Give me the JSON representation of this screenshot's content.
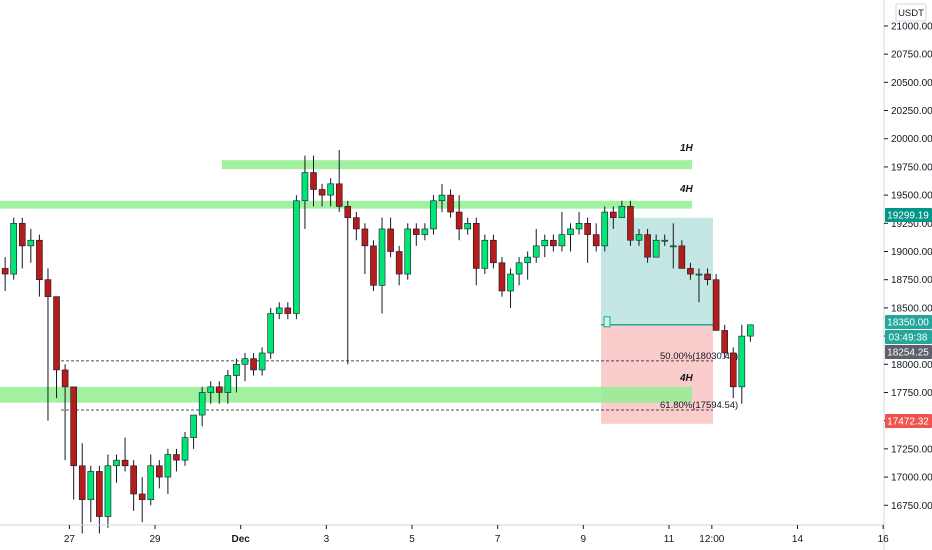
{
  "currency_unit": "USDT",
  "chart_data": {
    "type": "candlestick",
    "symbol_unit": "USDT",
    "y_ticks": [
      21000,
      20750,
      20500,
      20250,
      20000,
      19750,
      19500,
      19250,
      19000,
      18750,
      18500,
      18250,
      18000,
      17750,
      17500,
      17250,
      17000,
      16750
    ],
    "y_tick_labels": [
      "21000.00",
      "20750.00",
      "20500.00",
      "20250.00",
      "20000.00",
      "19750.00",
      "19500.00",
      "19250.00",
      "19000.00",
      "18750.00",
      "18500.00",
      "18250.00",
      "18000.00",
      "17750.00",
      "17500.00",
      "17250.00",
      "17000.00",
      "16750.00"
    ],
    "x_ticks": [
      {
        "label": "27",
        "t": 7.5
      },
      {
        "label": "29",
        "t": 17.5
      },
      {
        "label": "Dec",
        "t": 27.5,
        "bold": true
      },
      {
        "label": "3",
        "t": 37.5
      },
      {
        "label": "5",
        "t": 47.5
      },
      {
        "label": "7",
        "t": 57.5
      },
      {
        "label": "9",
        "t": 67.5
      },
      {
        "label": "11",
        "t": 77.5
      },
      {
        "label": "12:00",
        "t": 82.5
      },
      {
        "label": "14",
        "t": 92.5
      },
      {
        "label": "16",
        "t": 102.5
      }
    ],
    "x_range": [
      -0.6,
      102.6
    ],
    "y_range": [
      16575,
      21230
    ],
    "candles": [
      [
        18850,
        18950,
        18650,
        18800
      ],
      [
        18800,
        19300,
        18750,
        19250
      ],
      [
        19250,
        19300,
        18850,
        19050
      ],
      [
        19050,
        19200,
        18900,
        19100
      ],
      [
        19100,
        19150,
        18600,
        18750
      ],
      [
        18750,
        18850,
        17500,
        18600
      ],
      [
        18600,
        18600,
        17700,
        17950
      ],
      [
        17950,
        18000,
        17150,
        17800
      ],
      [
        17800,
        17800,
        16800,
        17100
      ],
      [
        17100,
        17300,
        16500,
        16800
      ],
      [
        16800,
        17100,
        16600,
        17050
      ],
      [
        17050,
        17100,
        16500,
        16650
      ],
      [
        16650,
        17200,
        16550,
        17100
      ],
      [
        17100,
        17200,
        16950,
        17150
      ],
      [
        17150,
        17350,
        17050,
        17100
      ],
      [
        17100,
        17150,
        16700,
        16850
      ],
      [
        16850,
        17000,
        16600,
        16800
      ],
      [
        16800,
        17200,
        16750,
        17100
      ],
      [
        17100,
        17150,
        16900,
        17000
      ],
      [
        17000,
        17250,
        16850,
        17200
      ],
      [
        17200,
        17250,
        17050,
        17150
      ],
      [
        17150,
        17400,
        17100,
        17350
      ],
      [
        17350,
        17550,
        17250,
        17550
      ],
      [
        17550,
        17800,
        17450,
        17750
      ],
      [
        17750,
        17850,
        17650,
        17800
      ],
      [
        17800,
        17850,
        17650,
        17750
      ],
      [
        17750,
        17950,
        17650,
        17900
      ],
      [
        17900,
        18050,
        17750,
        18000
      ],
      [
        18000,
        18100,
        17850,
        18050
      ],
      [
        18050,
        18100,
        17900,
        17950
      ],
      [
        17950,
        18150,
        17900,
        18100
      ],
      [
        18100,
        18500,
        18050,
        18450
      ],
      [
        18450,
        18550,
        18400,
        18500
      ],
      [
        18500,
        18550,
        18400,
        18450
      ],
      [
        18450,
        19500,
        18400,
        19450
      ],
      [
        19450,
        19850,
        19200,
        19700
      ],
      [
        19700,
        19850,
        19400,
        19550
      ],
      [
        19550,
        19600,
        19400,
        19500
      ],
      [
        19500,
        19650,
        19400,
        19600
      ],
      [
        19600,
        19900,
        19350,
        19400
      ],
      [
        19400,
        19450,
        18000,
        19300
      ],
      [
        19300,
        19350,
        19100,
        19200
      ],
      [
        19200,
        19250,
        18800,
        19050
      ],
      [
        19050,
        19100,
        18650,
        18700
      ],
      [
        18700,
        19300,
        18450,
        19200
      ],
      [
        19200,
        19300,
        18950,
        19000
      ],
      [
        19000,
        19050,
        18700,
        18800
      ],
      [
        18800,
        19250,
        18750,
        19200
      ],
      [
        19200,
        19250,
        19050,
        19150
      ],
      [
        19150,
        19250,
        19100,
        19200
      ],
      [
        19200,
        19500,
        19150,
        19450
      ],
      [
        19450,
        19600,
        19350,
        19500
      ],
      [
        19500,
        19550,
        19300,
        19350
      ],
      [
        19350,
        19500,
        19100,
        19200
      ],
      [
        19200,
        19300,
        19150,
        19250
      ],
      [
        19250,
        19300,
        18700,
        18850
      ],
      [
        18850,
        19150,
        18800,
        19100
      ],
      [
        19100,
        19150,
        18850,
        18900
      ],
      [
        18900,
        18950,
        18600,
        18650
      ],
      [
        18650,
        18850,
        18500,
        18800
      ],
      [
        18800,
        18950,
        18700,
        18900
      ],
      [
        18900,
        19000,
        18750,
        18950
      ],
      [
        18950,
        19200,
        18900,
        19050
      ],
      [
        19050,
        19150,
        18950,
        19100
      ],
      [
        19100,
        19150,
        19000,
        19050
      ],
      [
        19050,
        19350,
        19000,
        19150
      ],
      [
        19150,
        19250,
        19000,
        19200
      ],
      [
        19200,
        19350,
        19150,
        19250
      ],
      [
        19250,
        19300,
        18900,
        19150
      ],
      [
        19150,
        19250,
        19000,
        19050
      ],
      [
        19050,
        19400,
        19000,
        19350
      ],
      [
        19350,
        19400,
        19200,
        19300
      ],
      [
        19300,
        19450,
        19300,
        19400
      ],
      [
        19400,
        19450,
        19050,
        19100
      ],
      [
        19100,
        19200,
        19050,
        19150
      ],
      [
        19150,
        19200,
        18900,
        18950
      ],
      [
        18950,
        19150,
        18950,
        19100
      ],
      [
        19100,
        19150,
        19050,
        19100
      ],
      [
        19050,
        19250,
        18850,
        19050
      ],
      [
        19050,
        19100,
        18850,
        18850
      ],
      [
        18850,
        18900,
        18750,
        18800
      ],
      [
        18800,
        18850,
        18550,
        18800
      ],
      [
        18800,
        18850,
        18700,
        18750
      ],
      [
        18750,
        18800,
        18300,
        18300
      ],
      [
        18300,
        18350,
        18050,
        18100
      ],
      [
        18100,
        18150,
        17700,
        17800
      ],
      [
        17800,
        18350,
        17650,
        18250
      ],
      [
        18250,
        18350,
        18200,
        18350
      ]
    ],
    "zones": [
      {
        "label": "1H",
        "low": 19730,
        "high": 19810
      },
      {
        "label": "4H",
        "low": 19380,
        "high": 19450
      },
      {
        "label": "4H",
        "low": 17660,
        "high": 17800
      }
    ],
    "fib_levels": [
      {
        "label": "50.00%(18030.40)",
        "price": 18030.4
      },
      {
        "label": "61.80%(17594.54)",
        "price": 17594.54
      }
    ],
    "position": {
      "target": 19299.19,
      "entry": 18350.0,
      "stop": 17472.32
    },
    "price_badges": [
      {
        "text": "19299.19",
        "price": 19299.19,
        "color": "#009688"
      },
      {
        "text": "18350.00",
        "price": 18350.0,
        "color": "#26a69a"
      },
      {
        "text": "03:49:38",
        "price": 18350.0,
        "color": "#26a69a"
      },
      {
        "text": "18254.25",
        "price": 18150.0,
        "color": "#5d606b"
      },
      {
        "text": "17472.32",
        "price": 17472.32,
        "color": "#ef5350"
      }
    ],
    "colors": {
      "up": "#00e676",
      "down": "#b71c1c",
      "wick": "#131722",
      "zone": "#90ee90",
      "target_fill": "#b2dfdb",
      "stop_fill": "#f8bbbb",
      "entry_line": "#26a69a",
      "grid_text": "#131722"
    }
  }
}
